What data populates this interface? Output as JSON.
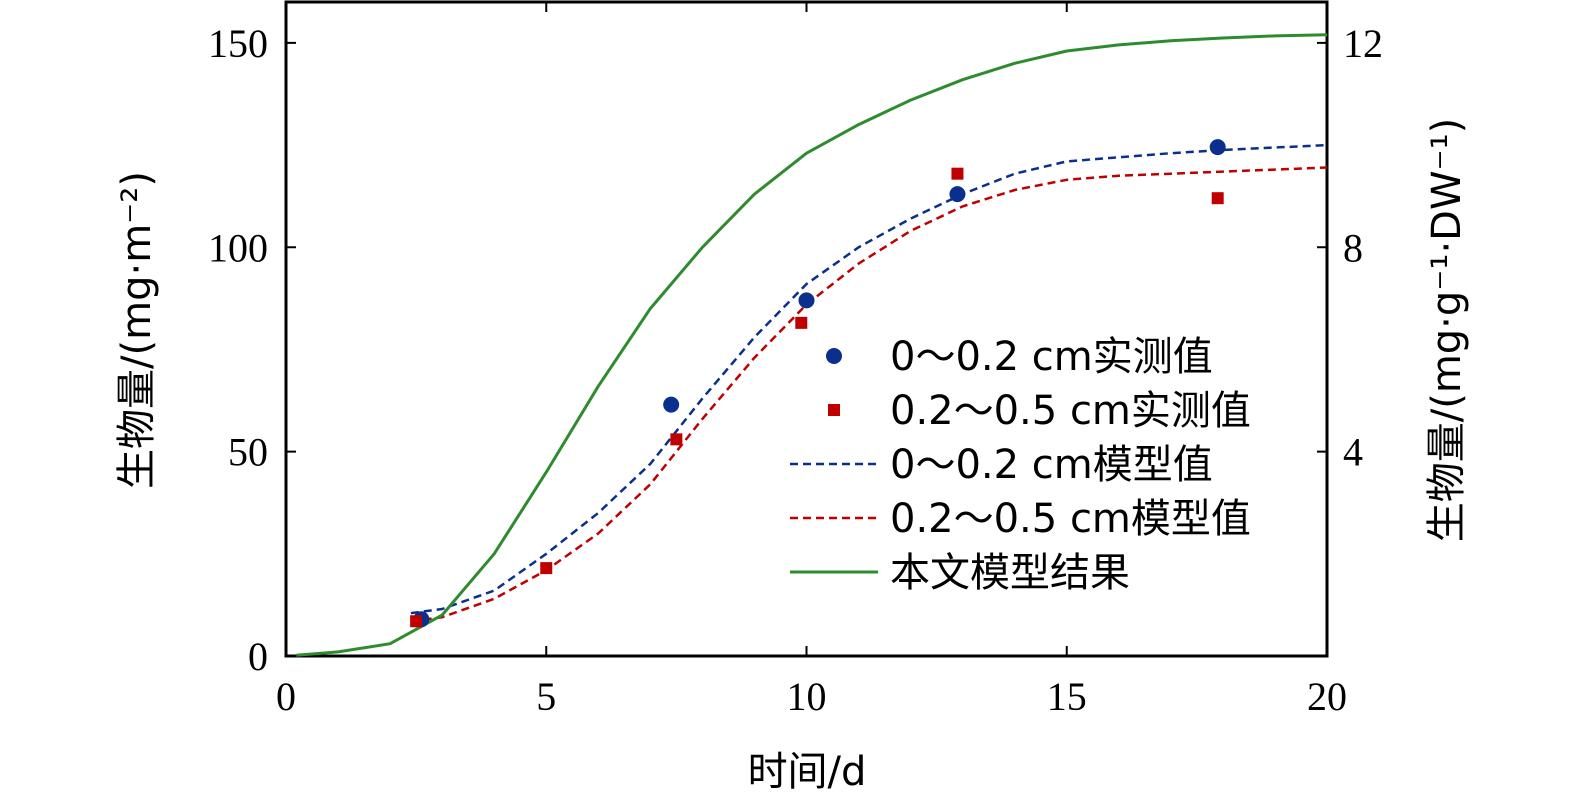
{
  "chart_data": {
    "type": "line",
    "title": "",
    "xlabel": "时间/d",
    "ylabel": "生物量/(mg·m⁻²)",
    "y2label": "生物量/(mg·g⁻¹·DW⁻¹)",
    "xlim": [
      0,
      20
    ],
    "ylim": [
      0,
      160
    ],
    "y2lim": [
      0,
      12.8
    ],
    "xticks": [
      "0",
      "5",
      "10",
      "15",
      "20"
    ],
    "yticks": [
      "0",
      "50",
      "100",
      "150"
    ],
    "y2ticks": [
      "4",
      "8",
      "12"
    ],
    "grid": false,
    "legend_position": "right-center",
    "series": [
      {
        "name": "0～0.2 cm实测值",
        "kind": "scatter",
        "marker": "circle",
        "color": "#0a2f8c",
        "points": [
          [
            2.6,
            9
          ],
          [
            7.4,
            61.5
          ],
          [
            10,
            87
          ],
          [
            12.9,
            113
          ],
          [
            17.9,
            124.5
          ]
        ]
      },
      {
        "name": "0.2～0.5 cm实测值",
        "kind": "scatter",
        "marker": "square",
        "color": "#c00000",
        "points": [
          [
            2.5,
            8.5
          ],
          [
            5,
            21.5
          ],
          [
            7.5,
            53
          ],
          [
            9.9,
            81.5
          ],
          [
            12.9,
            118
          ],
          [
            17.9,
            112
          ]
        ]
      },
      {
        "name": "0～0.2 cm模型值",
        "kind": "line",
        "style": "dashed",
        "color": "#0a2f8c",
        "points": [
          [
            2.4,
            10.5
          ],
          [
            3,
            11.5
          ],
          [
            4,
            16
          ],
          [
            5,
            25
          ],
          [
            6,
            35
          ],
          [
            7,
            47
          ],
          [
            8,
            63
          ],
          [
            9,
            78
          ],
          [
            10,
            91
          ],
          [
            11,
            100
          ],
          [
            12,
            107
          ],
          [
            13,
            113
          ],
          [
            14,
            118
          ],
          [
            15,
            121
          ],
          [
            16,
            122
          ],
          [
            17,
            123
          ],
          [
            18,
            123.8
          ],
          [
            19,
            124.4
          ],
          [
            20,
            125
          ]
        ]
      },
      {
        "name": "0.2～0.5 cm模型值",
        "kind": "line",
        "style": "dashed",
        "color": "#c00000",
        "points": [
          [
            2.4,
            8.5
          ],
          [
            3,
            9.5
          ],
          [
            4,
            14
          ],
          [
            5,
            21
          ],
          [
            6,
            30
          ],
          [
            7,
            42
          ],
          [
            8,
            58
          ],
          [
            9,
            73
          ],
          [
            10,
            86
          ],
          [
            11,
            96
          ],
          [
            12,
            104
          ],
          [
            13,
            110
          ],
          [
            14,
            114
          ],
          [
            15,
            116.5
          ],
          [
            16,
            117.5
          ],
          [
            17,
            118
          ],
          [
            18,
            118.5
          ],
          [
            19,
            119
          ],
          [
            20,
            119.5
          ]
        ]
      },
      {
        "name": "本文模型结果",
        "kind": "line",
        "style": "solid",
        "color": "#2e8b2e",
        "points": [
          [
            0.2,
            0.2
          ],
          [
            1,
            1
          ],
          [
            2,
            3
          ],
          [
            3,
            10
          ],
          [
            4,
            25
          ],
          [
            5,
            45
          ],
          [
            6,
            66
          ],
          [
            7,
            85
          ],
          [
            8,
            100
          ],
          [
            9,
            113
          ],
          [
            10,
            123
          ],
          [
            11,
            130
          ],
          [
            12,
            136
          ],
          [
            13,
            141
          ],
          [
            14,
            145
          ],
          [
            15,
            148
          ],
          [
            16,
            149.5
          ],
          [
            17,
            150.5
          ],
          [
            18,
            151.2
          ],
          [
            19,
            151.7
          ],
          [
            20,
            152
          ]
        ]
      }
    ]
  }
}
